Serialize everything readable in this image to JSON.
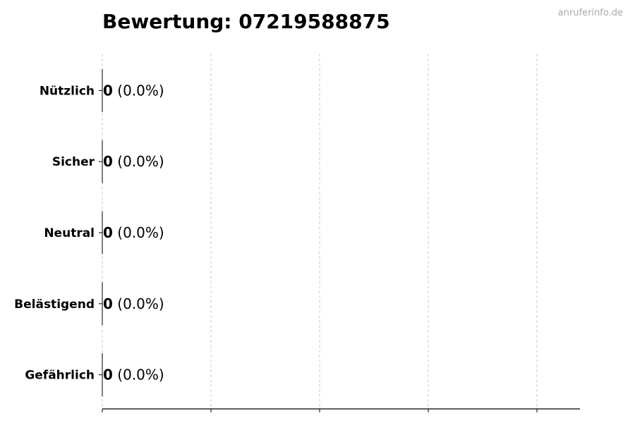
{
  "chart_data": {
    "type": "bar",
    "orientation": "horizontal",
    "title": "Bewertung: 07219588875",
    "watermark": "anruferinfo.de",
    "categories": [
      "Nützlich",
      "Sicher",
      "Neutral",
      "Belästigend",
      "Gefährlich"
    ],
    "values": [
      0,
      0,
      0,
      0,
      0
    ],
    "labels": [
      {
        "count": "0",
        "percent": "(0.0%)"
      },
      {
        "count": "0",
        "percent": "(0.0%)"
      },
      {
        "count": "0",
        "percent": "(0.0%)"
      },
      {
        "count": "0",
        "percent": "(0.0%)"
      },
      {
        "count": "0",
        "percent": "(0.0%)"
      }
    ],
    "xlabel": "",
    "ylabel": "",
    "x_tick_labels_shown": false,
    "grid": "x-dashed",
    "colors": {
      "bar_edge": "#000000",
      "grid": "#cccccc",
      "watermark": "#aaaaaa"
    }
  }
}
